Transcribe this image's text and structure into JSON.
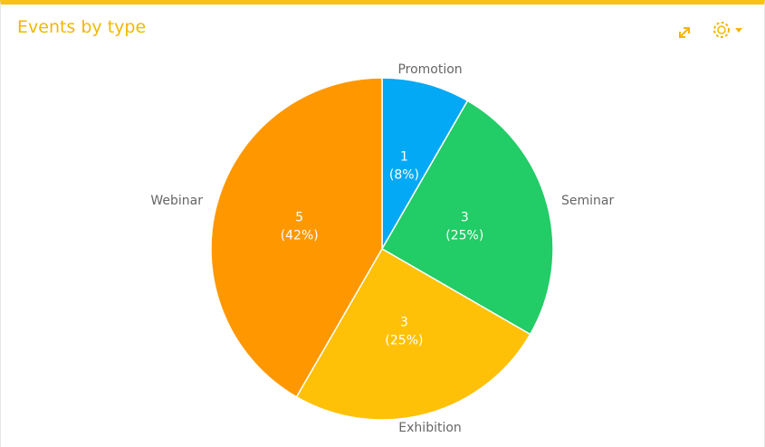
{
  "chart_data": {
    "type": "pie",
    "title": "Events by type",
    "categories": [
      "Promotion",
      "Seminar",
      "Exhibition",
      "Webinar"
    ],
    "values": [
      1,
      3,
      3,
      5
    ],
    "percent_labels": [
      "(8%)",
      "(25%)",
      "(25%)",
      "(42%)"
    ],
    "colors": [
      "#03a9f4",
      "#22cc66",
      "#ffc107",
      "#ff9800"
    ]
  }
}
